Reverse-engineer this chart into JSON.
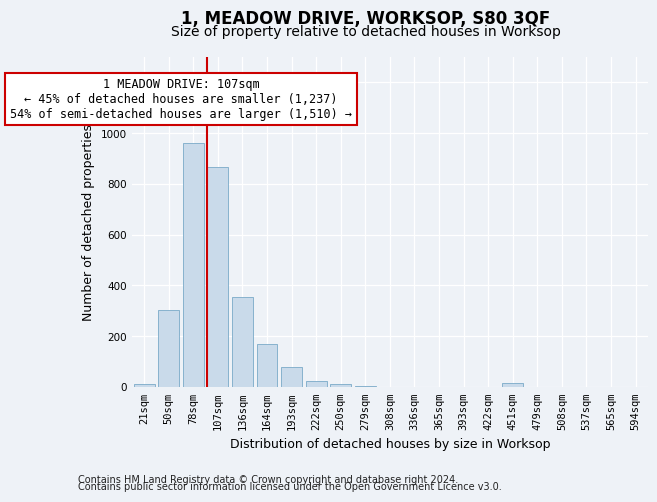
{
  "title": "1, MEADOW DRIVE, WORKSOP, S80 3QF",
  "subtitle": "Size of property relative to detached houses in Worksop",
  "xlabel": "Distribution of detached houses by size in Worksop",
  "ylabel": "Number of detached properties",
  "bar_color": "#c9daea",
  "bar_edge_color": "#7aaac8",
  "categories": [
    "21sqm",
    "50sqm",
    "78sqm",
    "107sqm",
    "136sqm",
    "164sqm",
    "193sqm",
    "222sqm",
    "250sqm",
    "279sqm",
    "308sqm",
    "336sqm",
    "365sqm",
    "393sqm",
    "422sqm",
    "451sqm",
    "479sqm",
    "508sqm",
    "537sqm",
    "565sqm",
    "594sqm"
  ],
  "values": [
    10,
    305,
    960,
    865,
    355,
    170,
    80,
    25,
    10,
    5,
    0,
    0,
    0,
    0,
    0,
    15,
    0,
    0,
    0,
    0,
    0
  ],
  "red_line_index": 3,
  "annotation_line1": "1 MEADOW DRIVE: 107sqm",
  "annotation_line2": "← 45% of detached houses are smaller (1,237)",
  "annotation_line3": "54% of semi-detached houses are larger (1,510) →",
  "ylim_max": 1300,
  "yticks": [
    0,
    200,
    400,
    600,
    800,
    1000,
    1200
  ],
  "footer_line1": "Contains HM Land Registry data © Crown copyright and database right 2024.",
  "footer_line2": "Contains public sector information licensed under the Open Government Licence v3.0.",
  "bg_color": "#eef2f7",
  "grid_color": "#ffffff",
  "annotation_box_facecolor": "#ffffff",
  "annotation_box_edgecolor": "#cc0000",
  "red_line_color": "#cc0000",
  "title_fontsize": 12,
  "subtitle_fontsize": 10,
  "axis_label_fontsize": 9,
  "tick_fontsize": 7.5,
  "annotation_fontsize": 8.5,
  "footer_fontsize": 7
}
